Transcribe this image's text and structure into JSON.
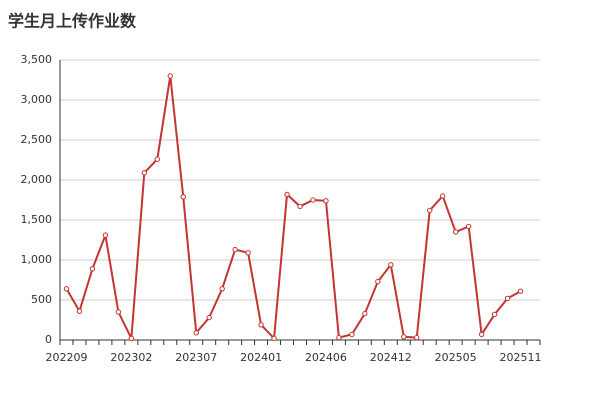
{
  "chart_data": {
    "type": "line",
    "title": "学生月上传作业数",
    "categories": [
      "202209",
      null,
      null,
      null,
      null,
      "202302",
      null,
      null,
      null,
      null,
      "202307",
      null,
      null,
      null,
      null,
      "202401",
      null,
      null,
      null,
      null,
      "202406",
      null,
      null,
      null,
      null,
      "202412",
      null,
      null,
      null,
      null,
      "202505",
      null,
      null,
      null,
      null,
      "202511",
      null
    ],
    "series": [
      {
        "color": "#c23531",
        "values": [
          640,
          360,
          890,
          1310,
          350,
          20,
          2090,
          2260,
          3300,
          1790,
          90,
          280,
          640,
          1130,
          1090,
          190,
          20,
          1820,
          1670,
          1750,
          1740,
          30,
          70,
          330,
          730,
          940,
          40,
          30,
          1620,
          1800,
          1350,
          1420,
          70,
          320,
          520,
          610,
          null
        ]
      }
    ],
    "ylim": [
      0,
      3500
    ],
    "yticks": [
      0,
      500,
      {
        "value": 1000,
        "label": "1,000"
      },
      {
        "value": 1500,
        "label": "1,500"
      },
      {
        "value": 2000,
        "label": "2,000"
      },
      {
        "value": 2500,
        "label": "2,500"
      },
      {
        "value": 3000,
        "label": "3,000"
      },
      {
        "value": 3500,
        "label": "3,500"
      }
    ],
    "grid": true
  }
}
